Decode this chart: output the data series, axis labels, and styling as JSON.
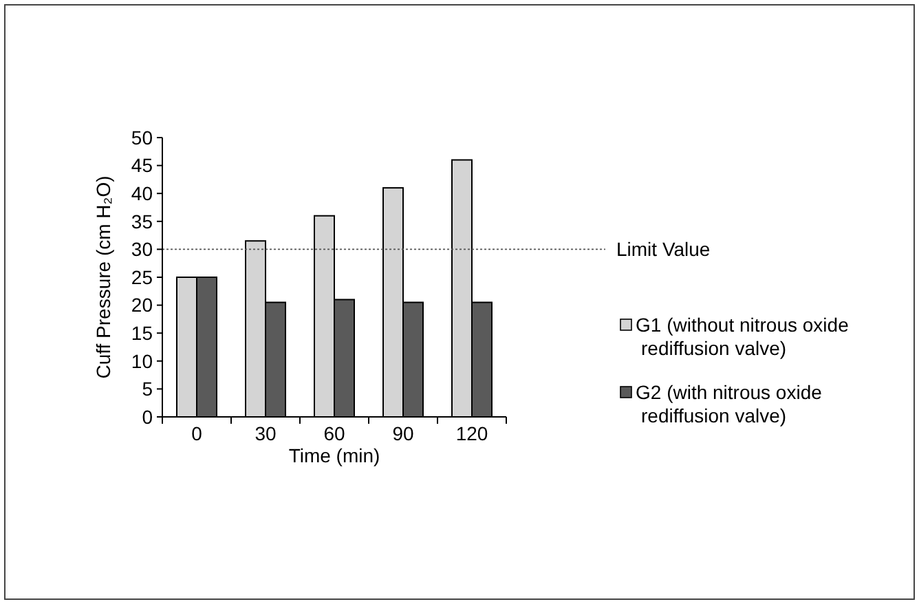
{
  "chart_data": {
    "type": "bar",
    "xlabel": "Time (min)",
    "ylabel": "Cuff Pressure (cm H₂O)",
    "categories": [
      "0",
      "30",
      "60",
      "90",
      "120"
    ],
    "series": [
      {
        "name": "G1 (without nitrous oxide rediffusion valve)",
        "color": "#d4d4d4",
        "values": [
          25,
          31.5,
          36,
          41,
          46
        ]
      },
      {
        "name": "G2 (with nitrous oxide rediffusion valve)",
        "color": "#5a5a5a",
        "values": [
          25,
          20.5,
          21,
          20.5,
          20.5
        ]
      }
    ],
    "ylim": [
      0,
      50
    ],
    "yticks": [
      0,
      5,
      10,
      15,
      20,
      25,
      30,
      35,
      40,
      45,
      50
    ],
    "grid": false,
    "legend": "right",
    "ref_lines": [
      {
        "axis": "y",
        "value": 30,
        "label": "Limit Value",
        "line_style": "dotted",
        "color": "#555555"
      }
    ]
  }
}
